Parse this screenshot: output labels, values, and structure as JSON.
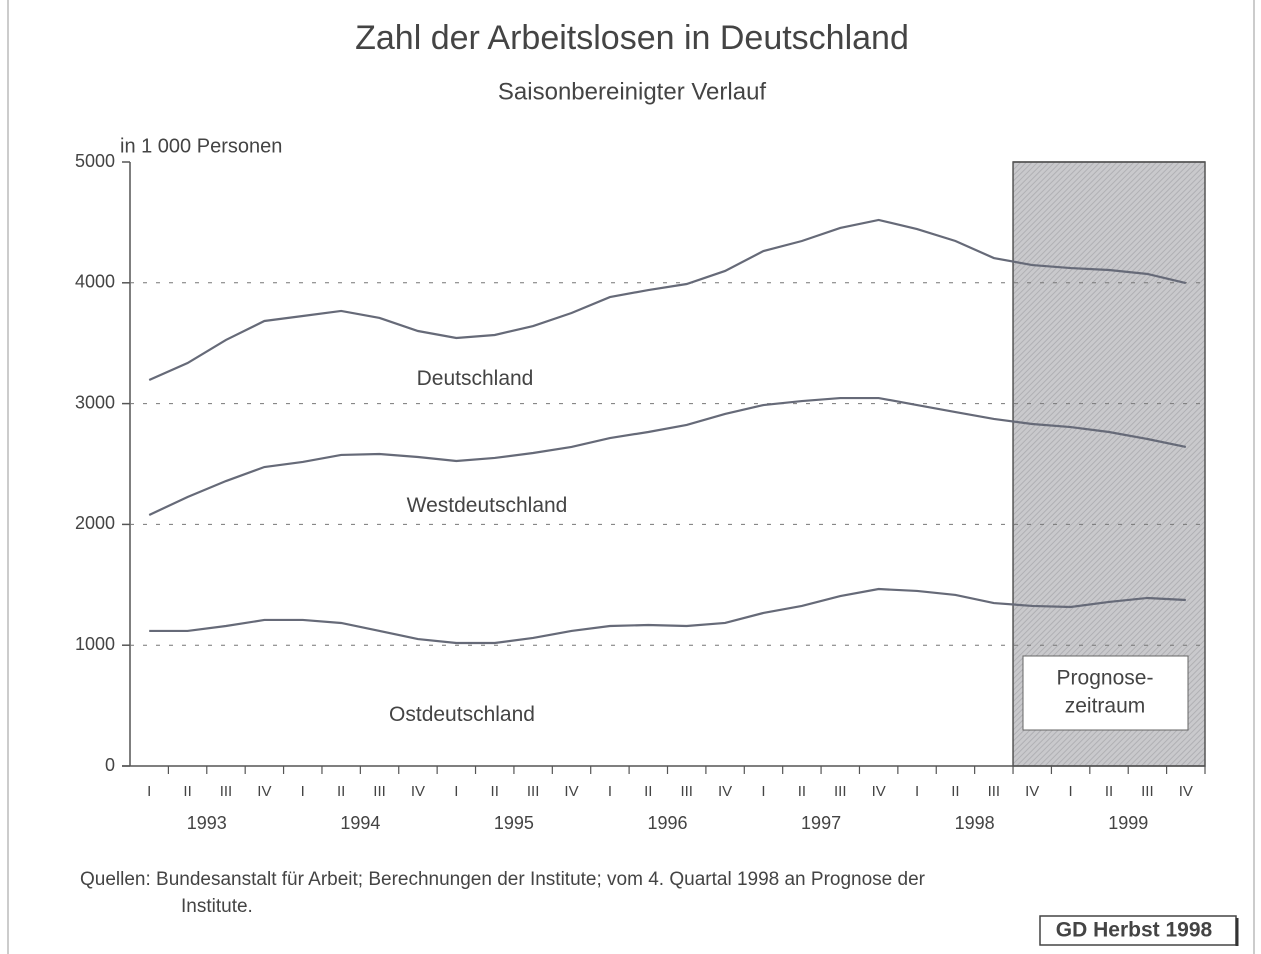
{
  "chart_data": {
    "type": "line",
    "title": "Zahl der Arbeitslosen in Deutschland",
    "subtitle": "Saisonbereinigter Verlauf",
    "y_axis_label": "in 1 000 Personen",
    "categories": [
      "I",
      "II",
      "III",
      "IV",
      "I",
      "II",
      "III",
      "IV",
      "I",
      "II",
      "III",
      "IV",
      "I",
      "II",
      "III",
      "IV",
      "I",
      "II",
      "III",
      "IV",
      "I",
      "II",
      "III",
      "IV",
      "I",
      "II",
      "III",
      "IV"
    ],
    "years": [
      "1993",
      "1994",
      "1995",
      "1996",
      "1997",
      "1998",
      "1999"
    ],
    "series": [
      {
        "name": "Deutschland",
        "color": "#666a78",
        "values": [
          3195,
          3336,
          3527,
          3684,
          3725,
          3767,
          3709,
          3601,
          3543,
          3568,
          3642,
          3750,
          3882,
          3940,
          3990,
          4098,
          4263,
          4346,
          4454,
          4520,
          4445,
          4346,
          4205,
          4147,
          4122,
          4106,
          4073,
          3998
        ]
      },
      {
        "name": "Westdeutschland",
        "color": "#666a78",
        "values": [
          2078,
          2227,
          2359,
          2475,
          2517,
          2575,
          2583,
          2558,
          2525,
          2550,
          2591,
          2641,
          2715,
          2765,
          2823,
          2914,
          2988,
          3021,
          3046,
          3046,
          2988,
          2930,
          2873,
          2831,
          2806,
          2765,
          2707,
          2641
        ]
      },
      {
        "name": "Ostdeutschland",
        "color": "#666a78",
        "values": [
          1118,
          1118,
          1159,
          1209,
          1209,
          1184,
          1118,
          1051,
          1018,
          1018,
          1060,
          1118,
          1159,
          1167,
          1159,
          1184,
          1267,
          1325,
          1407,
          1465,
          1449,
          1416,
          1349,
          1325,
          1316,
          1358,
          1391,
          1374
        ]
      }
    ],
    "ylim": [
      0,
      5000
    ],
    "yticks": [
      0,
      1000,
      2000,
      3000,
      4000,
      5000
    ],
    "grid": true,
    "forecast": {
      "start": 23,
      "label": [
        "Prognose-",
        "zeitraum"
      ]
    },
    "source": [
      "Quellen: Bundesanstalt für Arbeit; Berechnungen der Institute; vom 4. Quartal 1998 an Prognose der",
      "Institute."
    ],
    "badge": "GD Herbst 1998"
  }
}
